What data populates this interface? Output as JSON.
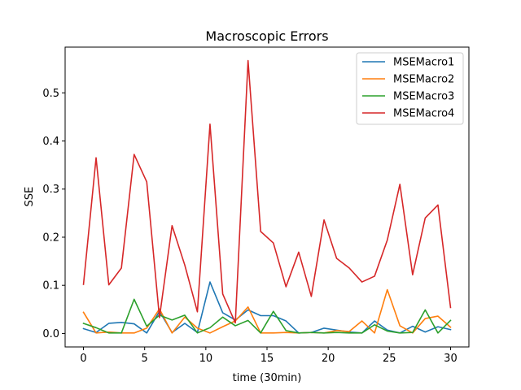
{
  "chart_data": {
    "type": "line",
    "title": "Macroscopic Errors",
    "xlabel": "time (30min)",
    "ylabel": "SSE",
    "xlim": [
      -1.5,
      31.5
    ],
    "ylim": [
      -0.028,
      0.595
    ],
    "xticks": [
      0,
      5,
      10,
      15,
      20,
      25,
      30
    ],
    "yticks": [
      0.0,
      0.1,
      0.2,
      0.3,
      0.4,
      0.5
    ],
    "ytick_labels": [
      "0.0",
      "0.1",
      "0.2",
      "0.3",
      "0.4",
      "0.5"
    ],
    "grid": false,
    "legend_position": "top-right",
    "x": [
      0,
      1.03,
      2.07,
      3.1,
      4.14,
      5.17,
      6.21,
      7.24,
      8.28,
      9.31,
      10.34,
      11.38,
      12.41,
      13.45,
      14.48,
      15.52,
      16.55,
      17.59,
      18.62,
      19.66,
      20.69,
      21.72,
      22.76,
      23.79,
      24.83,
      25.86,
      26.9,
      27.93,
      28.97,
      30
    ],
    "series": [
      {
        "name": "MSEMacro1",
        "color": "#1f77b4",
        "values": [
          0.01,
          0.002,
          0.021,
          0.023,
          0.02,
          0.001,
          0.046,
          0.002,
          0.021,
          0.002,
          0.107,
          0.043,
          0.028,
          0.049,
          0.037,
          0.037,
          0.026,
          0.001,
          0.002,
          0.011,
          0.007,
          0.003,
          0.001,
          0.026,
          0.007,
          0.001,
          0.015,
          0.003,
          0.014,
          0.008
        ]
      },
      {
        "name": "MSEMacro2",
        "color": "#ff7f0e",
        "values": [
          0.044,
          0.001,
          0.003,
          0.001,
          0.001,
          0.011,
          0.051,
          0.001,
          0.034,
          0.011,
          0.001,
          0.014,
          0.026,
          0.055,
          0.001,
          0.001,
          0.002,
          0.001,
          0.002,
          0.001,
          0.006,
          0.004,
          0.026,
          0.001,
          0.091,
          0.016,
          0.001,
          0.031,
          0.036,
          0.013
        ]
      },
      {
        "name": "MSEMacro3",
        "color": "#2ca02c",
        "values": [
          0.021,
          0.012,
          0.001,
          0.001,
          0.071,
          0.015,
          0.038,
          0.028,
          0.038,
          0.001,
          0.012,
          0.034,
          0.016,
          0.027,
          0.001,
          0.046,
          0.006,
          0.001,
          0.002,
          0.001,
          0.002,
          0.001,
          0.001,
          0.018,
          0.005,
          0.001,
          0.002,
          0.049,
          0.001,
          0.027
        ]
      },
      {
        "name": "MSEMacro4",
        "color": "#d62728",
        "values": [
          0.102,
          0.365,
          0.101,
          0.136,
          0.372,
          0.315,
          0.033,
          0.224,
          0.142,
          0.045,
          0.435,
          0.082,
          0.022,
          0.567,
          0.212,
          0.188,
          0.097,
          0.169,
          0.077,
          0.236,
          0.156,
          0.136,
          0.107,
          0.119,
          0.194,
          0.31,
          0.122,
          0.24,
          0.267,
          0.054
        ]
      }
    ]
  }
}
